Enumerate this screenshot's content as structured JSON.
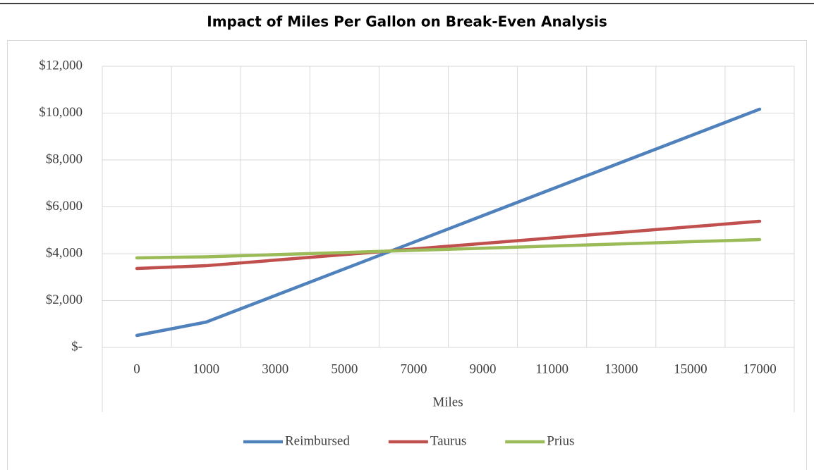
{
  "chart_data": {
    "type": "line",
    "title": "Impact of Miles Per Gallon on Break-Even Analysis",
    "x_label": "Miles",
    "categories": [
      "0",
      "1000",
      "3000",
      "5000",
      "7000",
      "9000",
      "11000",
      "13000",
      "15000",
      "17000"
    ],
    "series": [
      {
        "name": "Reimbursed",
        "color": "#4f81bd",
        "values": [
          511,
          1079,
          2215,
          3351,
          4487,
          5623,
          6759,
          7895,
          9031,
          10167
        ]
      },
      {
        "name": "Taurus",
        "color": "#c0504d",
        "values": [
          3368,
          3487,
          3724,
          3961,
          4198,
          4435,
          4672,
          4909,
          5146,
          5383
        ]
      },
      {
        "name": "Prius",
        "color": "#9bbb59",
        "values": [
          3820,
          3866,
          3958,
          4050,
          4142,
          4234,
          4326,
          4418,
          4510,
          4602
        ]
      }
    ],
    "ylim": [
      0,
      12000
    ],
    "yticks": [
      {
        "value": 0,
        "label": "$-"
      },
      {
        "value": 2000,
        "label": "$2,000"
      },
      {
        "value": 4000,
        "label": "$4,000"
      },
      {
        "value": 6000,
        "label": "$6,000"
      },
      {
        "value": 8000,
        "label": "$8,000"
      },
      {
        "value": 10000,
        "label": "$10,000"
      },
      {
        "value": 12000,
        "label": "$12,000"
      }
    ],
    "grid": true,
    "legend": "bottom"
  }
}
